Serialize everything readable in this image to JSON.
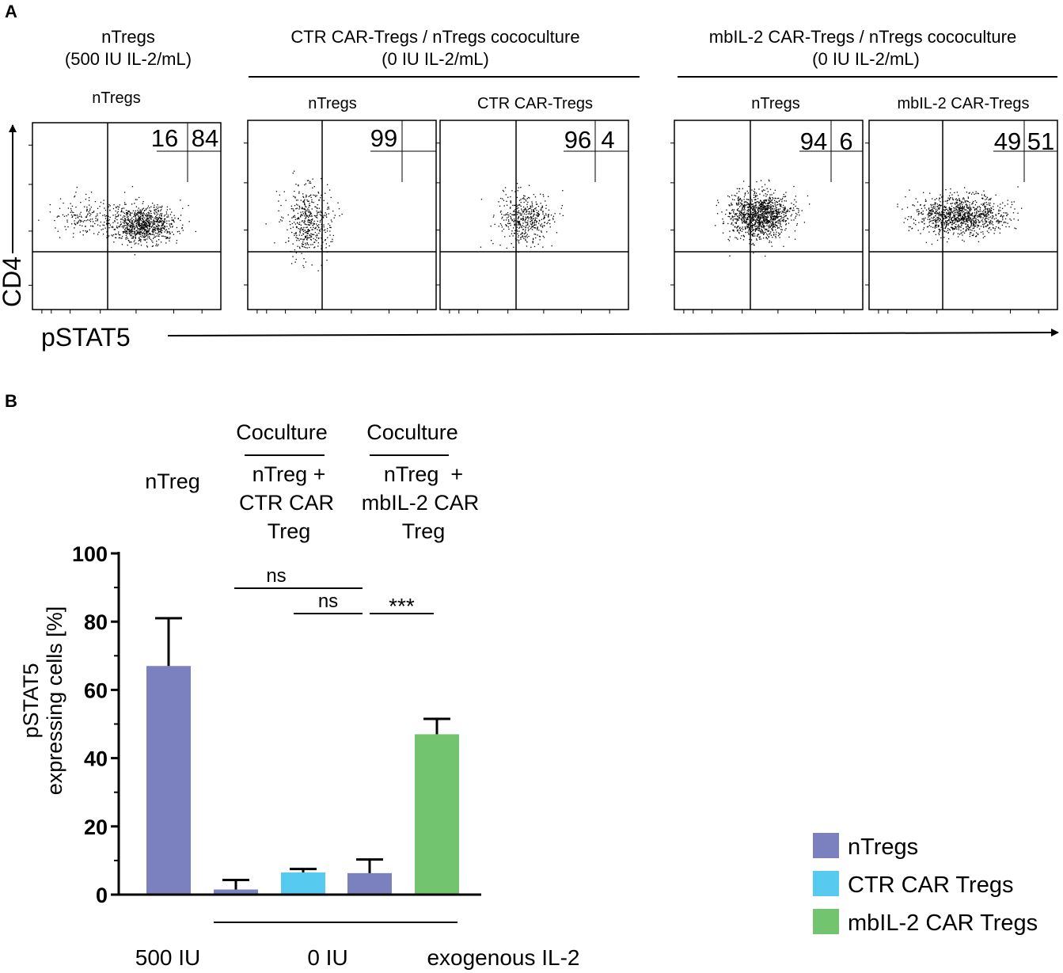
{
  "chart_data": [
    {
      "type": "scatter",
      "panel": "A",
      "xlabel": "pSTAT5",
      "ylabel": "CD4",
      "groups": [
        {
          "title_line1": "nTregs",
          "title_line2": "(500 IU IL-2/mL)"
        },
        {
          "title_line1": "CTR CAR-Tregs / nTregs cococulture",
          "title_line2": "(0 IU IL-2/mL)"
        },
        {
          "title_line1": "mbIL-2 CAR-Tregs / nTregs cococulture",
          "title_line2": "(0 IU IL-2/mL)"
        }
      ],
      "plots": [
        {
          "label": "nTregs",
          "quadrant_values": [
            "16",
            "84"
          ],
          "cluster": {
            "cx": 0.58,
            "cy": 0.54,
            "sx": 0.09,
            "sy": 0.05,
            "n": 900
          },
          "tail": {
            "cx": 0.27,
            "cy": 0.5,
            "sx": 0.08,
            "sy": 0.05,
            "n": 150
          }
        },
        {
          "label": "nTregs",
          "quadrant_values": [
            "99"
          ],
          "cluster": {
            "cx": 0.32,
            "cy": 0.53,
            "sx": 0.06,
            "sy": 0.09,
            "n": 450
          }
        },
        {
          "label": "CTR CAR-Tregs",
          "quadrant_values": [
            "96",
            "4"
          ],
          "cluster": {
            "cx": 0.45,
            "cy": 0.52,
            "sx": 0.07,
            "sy": 0.07,
            "n": 450
          }
        },
        {
          "label": "nTregs",
          "quadrant_values": [
            "94",
            "6"
          ],
          "cluster": {
            "cx": 0.45,
            "cy": 0.5,
            "sx": 0.08,
            "sy": 0.06,
            "n": 1200
          }
        },
        {
          "label": "mbIL-2 CAR-Tregs",
          "quadrant_values": [
            "49",
            "51"
          ],
          "cluster": {
            "cx": 0.48,
            "cy": 0.5,
            "sx": 0.12,
            "sy": 0.05,
            "n": 1100
          }
        }
      ]
    },
    {
      "type": "bar",
      "panel": "B",
      "ylabel_line1": "pSTAT5",
      "ylabel_line2": "expressing cells [%]",
      "ylim": [
        0,
        100
      ],
      "yticks": [
        "0",
        "20",
        "40",
        "60",
        "80",
        "100"
      ],
      "bars": [
        {
          "series": "nTregs",
          "value": 67,
          "error": 14
        },
        {
          "series": "nTregs",
          "value": 1.5,
          "error": 2.8
        },
        {
          "series": "CTR CAR Tregs",
          "value": 6.5,
          "error": 1
        },
        {
          "series": "nTregs",
          "value": 6.3,
          "error": 4
        },
        {
          "series": "mbIL-2 CAR Tregs",
          "value": 47,
          "error": 4.5
        }
      ],
      "series_colors": {
        "nTregs": "#7b80bf",
        "CTR CAR Tregs": "#56cbef",
        "mbIL-2 CAR Tregs": "#72c56e"
      },
      "legend": [
        "nTregs",
        "CTR CAR Tregs",
        "mbIL-2 CAR Tregs"
      ],
      "header": {
        "group1": "nTreg",
        "coculture_label": "Coculture",
        "group2_lines": [
          "nTreg +",
          "CTR CAR",
          "Treg"
        ],
        "group3_lines": [
          "nTreg  +",
          "mbIL-2 CAR",
          "Treg"
        ]
      },
      "significance": [
        {
          "from_bar": 1,
          "to_bar": 3,
          "label": "ns"
        },
        {
          "from_bar": 2,
          "to_bar": 3,
          "label": "ns"
        },
        {
          "from_bar": 3,
          "to_bar": 4,
          "label": "***"
        }
      ],
      "x_labels": {
        "left": "500 IU",
        "middle": "0 IU",
        "right": "exogenous IL-2"
      }
    }
  ],
  "panel_labels": {
    "a": "A",
    "b": "B"
  }
}
